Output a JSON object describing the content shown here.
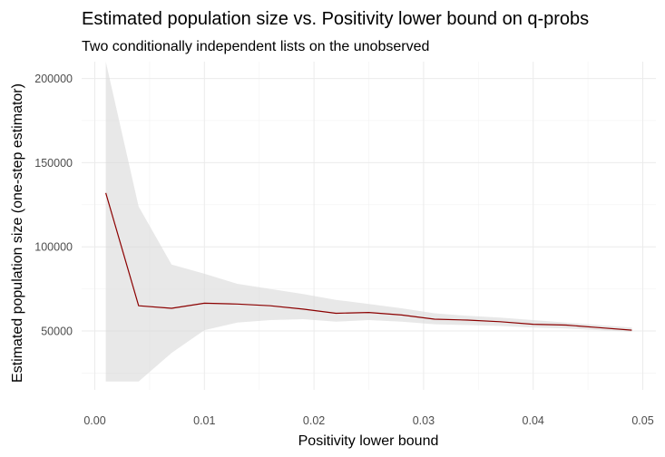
{
  "chart_data": {
    "type": "line",
    "title": "Estimated population size vs. Positivity lower bound on q-probs",
    "subtitle": "Two conditionally independent lists on the unobserved",
    "xlabel": "Positivity lower bound",
    "ylabel": "Estimated population size (one-step estimator)",
    "xlim": [
      -0.0012,
      0.0512
    ],
    "ylim": [
      15000,
      210000
    ],
    "x_ticks": [
      0.0,
      0.01,
      0.02,
      0.03,
      0.04,
      0.05
    ],
    "x_tick_labels": [
      "0.00",
      "0.01",
      "0.02",
      "0.03",
      "0.04",
      "0.05"
    ],
    "y_ticks": [
      50000,
      100000,
      150000,
      200000
    ],
    "y_tick_labels": [
      "50000",
      "100000",
      "150000",
      "200000"
    ],
    "grid": true,
    "legend": "none",
    "series": [
      {
        "name": "estimate",
        "color": "#8b0000",
        "x": [
          0.001,
          0.004,
          0.007,
          0.01,
          0.013,
          0.016,
          0.019,
          0.022,
          0.025,
          0.028,
          0.031,
          0.034,
          0.037,
          0.04,
          0.043,
          0.046,
          0.049
        ],
        "y": [
          132000,
          65000,
          63500,
          66500,
          66000,
          65000,
          63000,
          60500,
          61000,
          59500,
          57000,
          56500,
          55500,
          54000,
          53500,
          52000,
          50500
        ]
      }
    ],
    "ribbon": {
      "name": "confidence-band",
      "color": "#d9d9d9",
      "x": [
        0.001,
        0.004,
        0.007,
        0.01,
        0.013,
        0.016,
        0.019,
        0.022,
        0.025,
        0.028,
        0.031,
        0.034,
        0.037,
        0.04,
        0.043,
        0.046,
        0.049
      ],
      "upper": [
        210000,
        124000,
        89500,
        84000,
        78000,
        75000,
        72000,
        68500,
        66000,
        63500,
        60500,
        59000,
        58000,
        56500,
        55000,
        53500,
        52000
      ],
      "lower": [
        20000,
        20000,
        37000,
        50500,
        55000,
        56500,
        57000,
        55500,
        56500,
        55500,
        54000,
        53500,
        53000,
        52000,
        51500,
        50500,
        49500
      ]
    }
  }
}
